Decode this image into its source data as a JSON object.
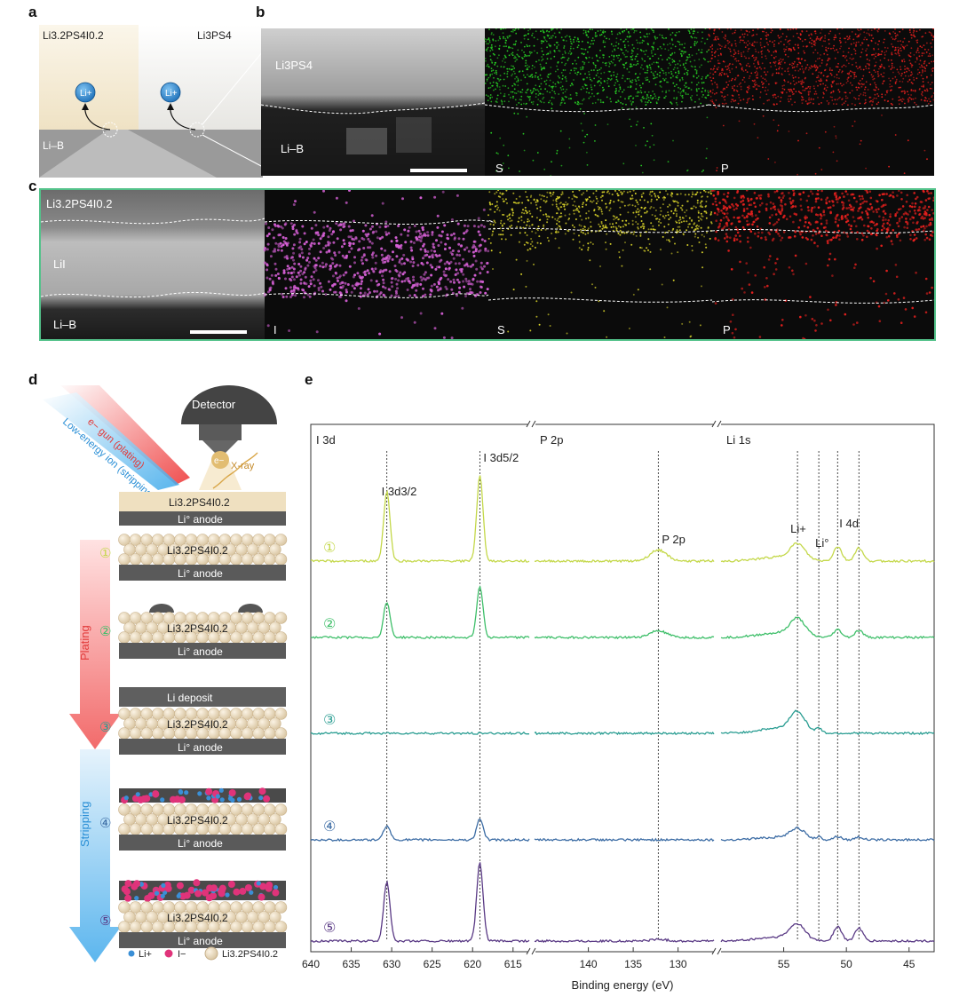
{
  "panels": {
    "a": "a",
    "b": "b",
    "c": "c",
    "d": "d",
    "e": "e"
  },
  "panel_a": {
    "left_label": "Li3.2PS4I0.2",
    "right_label": "Li3PS4",
    "ion_label": "Li+",
    "substrate_label": "Li–B"
  },
  "panel_b": {
    "sem_top_label": "Li3PS4",
    "sem_bottom_label": "Li–B",
    "map_s_label": "S",
    "map_p_label": "P",
    "colors": {
      "S": "#29d626",
      "P": "#e8201e"
    }
  },
  "panel_c": {
    "sem_top_label": "Li3.2PS4I0.2",
    "sem_mid_label": "LiI",
    "sem_bottom_label": "Li–B",
    "map_i_label": "I",
    "map_s_label": "S",
    "map_p_label": "P",
    "colors": {
      "I": "#d660d6",
      "S": "#dcd62a",
      "P": "#e8201e"
    }
  },
  "panel_d": {
    "detector_label": "Detector",
    "electron_label": "e−",
    "xray_label": "X-ray",
    "egun_label": "e− gun (plating)",
    "ion_label": "Low-energy ion (stripping)",
    "electrolyte_label": "Li3.2PS4I0.2",
    "anode_label": "Li° anode",
    "deposit_label": "Li deposit",
    "plating_label": "Plating",
    "stripping_label": "Stripping",
    "steps": [
      "①",
      "②",
      "③",
      "④",
      "⑤"
    ],
    "legend": {
      "li_ion": "Li+",
      "iodide": "I−",
      "electrolyte": "Li3.2PS4I0.2"
    },
    "colors": {
      "egun": "#ee3b3b",
      "ion": "#3aa8ea",
      "li_ion": "#3a8fd6",
      "iodide": "#e0337a",
      "particle": "#eadbc2",
      "anode": "#5a5a5a"
    }
  },
  "chart_data": {
    "type": "line",
    "title": "",
    "xlabel": "Binding energy (eV)",
    "ylabel": "",
    "x_reversed": true,
    "broken_axis": true,
    "regions": [
      {
        "label": "I 3d",
        "xlim": [
          640,
          613
        ],
        "ticks": [
          640,
          635,
          630,
          625,
          620,
          615
        ]
      },
      {
        "label": "P 2p",
        "xlim": [
          146,
          126
        ],
        "ticks": [
          140,
          135,
          130
        ]
      },
      {
        "label": "Li 1s",
        "xlim": [
          60,
          43
        ],
        "ticks": [
          55,
          50,
          45
        ]
      }
    ],
    "reference_lines": [
      630.6,
      619.1,
      132.2,
      53.9,
      52.2,
      50.7,
      49.0
    ],
    "annotations": [
      "I 3d3/2",
      "I 3d5/2",
      "P 2p",
      "Li+",
      "Li°",
      "I 4d"
    ],
    "series": [
      {
        "name": "①",
        "color": "#c4d84a",
        "peaks": {
          "I 3d3/2": 0.82,
          "I 3d5/2": 1.0,
          "P 2p": 0.13,
          "Li+": 0.18,
          "Li°": 0.0,
          "I 4d": 0.17
        }
      },
      {
        "name": "②",
        "color": "#3fbf6a",
        "peaks": {
          "I 3d3/2": 0.42,
          "I 3d5/2": 0.6,
          "P 2p": 0.08,
          "Li+": 0.2,
          "Li°": 0.0,
          "I 4d": 0.09
        }
      },
      {
        "name": "③",
        "color": "#2a9d92",
        "peaks": {
          "I 3d3/2": 0.0,
          "I 3d5/2": 0.0,
          "P 2p": 0.0,
          "Li+": 0.23,
          "Li°": 0.06,
          "I 4d": 0.0
        }
      },
      {
        "name": "④",
        "color": "#3d6da5",
        "peaks": {
          "I 3d3/2": 0.17,
          "I 3d5/2": 0.25,
          "P 2p": 0.0,
          "Li+": 0.12,
          "Li°": 0.03,
          "I 4d": 0.04
        }
      },
      {
        "name": "⑤",
        "color": "#5a3a85",
        "peaks": {
          "I 3d3/2": 0.7,
          "I 3d5/2": 0.92,
          "P 2p": 0.02,
          "Li+": 0.18,
          "Li°": 0.0,
          "I 4d": 0.17
        }
      }
    ]
  }
}
